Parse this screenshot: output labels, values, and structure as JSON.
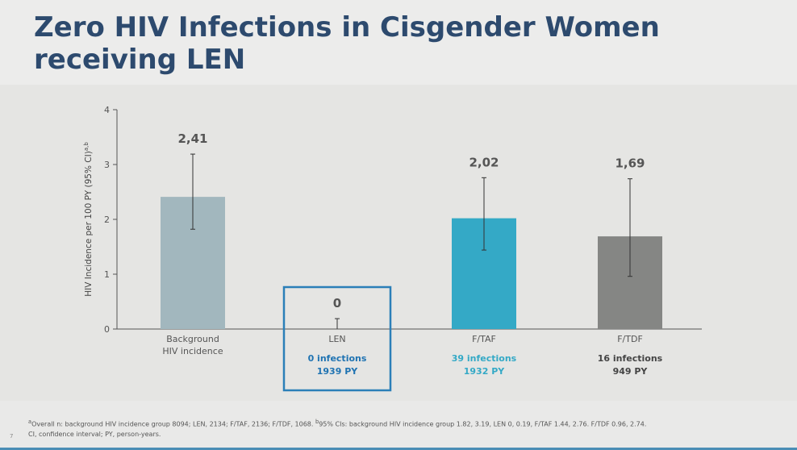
{
  "title_line1": "Zero HIV Infections in Cisgender Women",
  "title_line2": "receiving LEN",
  "chart_data": {
    "type": "bar",
    "ylabel": "HIV Incidence per 100 PY (95% CI)",
    "ylabel_superscript": "a,b",
    "ylim": [
      0,
      4
    ],
    "yticks": [
      "0",
      "1",
      "2",
      "3",
      "4"
    ],
    "categories": [
      {
        "line1": "Background",
        "line2": "HIV incidence"
      },
      {
        "line1": "LEN",
        "line2": ""
      },
      {
        "line1": "F/TAF",
        "line2": ""
      },
      {
        "line1": "F/TDF",
        "line2": ""
      }
    ],
    "values": [
      2.41,
      0,
      2.02,
      1.69
    ],
    "value_labels": [
      "2,41",
      "0",
      "2,02",
      "1,69"
    ],
    "ci_low": [
      1.82,
      0,
      1.44,
      0.96
    ],
    "ci_high": [
      3.19,
      0.19,
      2.76,
      2.74
    ],
    "colors": [
      "#a2b7be",
      "#a2b7be",
      "#34a9c6",
      "#858684"
    ],
    "infections": [
      "",
      "0 infections",
      "39 infections",
      "16 infections"
    ],
    "person_years": [
      "",
      "1939 PY",
      "1932 PY",
      "949 PY"
    ],
    "subtext_colors": [
      "#555555",
      "#1f73b2",
      "#34a9c6",
      "#444444"
    ],
    "highlight_color": "#2b7fb8"
  },
  "footnote_line1_a": "a",
  "footnote_line1": "Overall n: background HIV incidence group 8094; LEN, 2134; F/TAF, 2136; F/TDF, 1068. ",
  "footnote_line1_b": "b",
  "footnote_line1_cont": "95% CIs: background HIV incidence group 1.82, 3.19, LEN 0, 0.19, F/TAF 1.44, 2.76. F/TDF 0.96, 2.74.",
  "footnote_line2": "CI, confidence interval; PY, person-years.",
  "page_number": "7"
}
